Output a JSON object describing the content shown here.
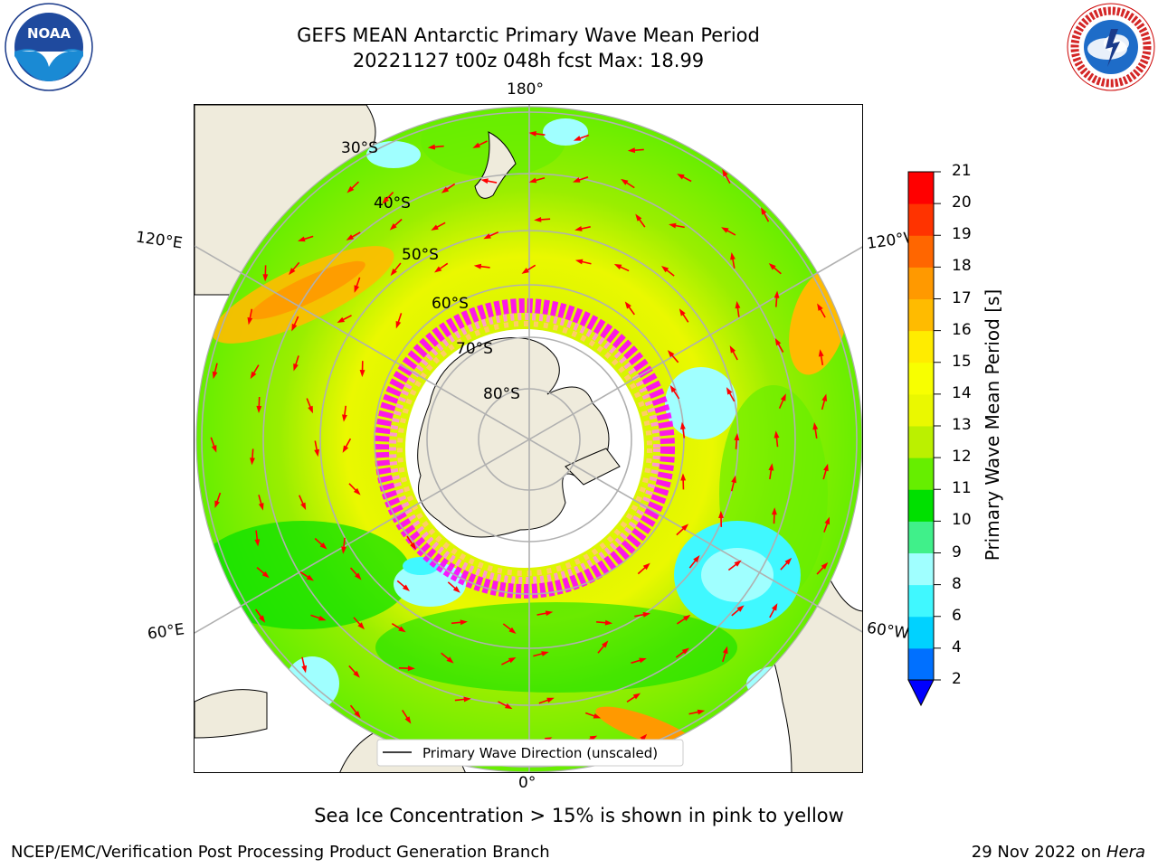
{
  "header": {
    "title_line1": "GEFS MEAN Antarctic Primary Wave Mean Period",
    "title_line2": "20221127 t00z 048h fcst   Max: 18.99"
  },
  "logos": {
    "left": {
      "icon": "noaa-logo",
      "text": "NOAA",
      "ring_text": "NATIONAL OCEANIC AND ATMOSPHERIC ADMINISTRATION · U.S. DEPARTMENT OF COMMERCE"
    },
    "right": {
      "icon": "nws-logo",
      "ring_text": "NATIONAL WEATHER SERVICE"
    }
  },
  "map": {
    "projection": "south-polar-stereographic",
    "longitude_labels": {
      "top": "180°",
      "bottom": "0°",
      "upper_left": "120°E",
      "lower_left": "60°E",
      "upper_right": "120°W",
      "lower_right": "60°W"
    },
    "latitude_labels": [
      "30°S",
      "40°S",
      "50°S",
      "60°S",
      "70°S",
      "80°S"
    ],
    "legend": "Primary Wave Direction (unscaled)",
    "vector_color": "#ff0000",
    "land_color": "#efebdc",
    "ice_colors": [
      "#ff00ff",
      "#ff99cc",
      "#ffcc66"
    ]
  },
  "colorbar": {
    "label": "Primary Wave Mean Period [s]",
    "ticks": [
      "2",
      "4",
      "6",
      "8",
      "9",
      "10",
      "11",
      "12",
      "13",
      "14",
      "15",
      "16",
      "17",
      "18",
      "19",
      "20",
      "21"
    ],
    "colors": [
      "#0070ff",
      "#00d2ff",
      "#40f8ff",
      "#a0ffff",
      "#40f08a",
      "#00e000",
      "#66ee00",
      "#bbf000",
      "#eaf800",
      "#f8ff00",
      "#ffec00",
      "#ffbb00",
      "#ff9900",
      "#ff6600",
      "#ff3300",
      "#ff0000"
    ],
    "extend_color": "#0000ff"
  },
  "note": "Sea Ice Concentration > 15% is shown in pink to yellow",
  "footer": {
    "left": "NCEP/EMC/Verification Post Processing Product Generation Branch",
    "right_prefix": "29 Nov 2022 on ",
    "right_italic": "Hera"
  }
}
